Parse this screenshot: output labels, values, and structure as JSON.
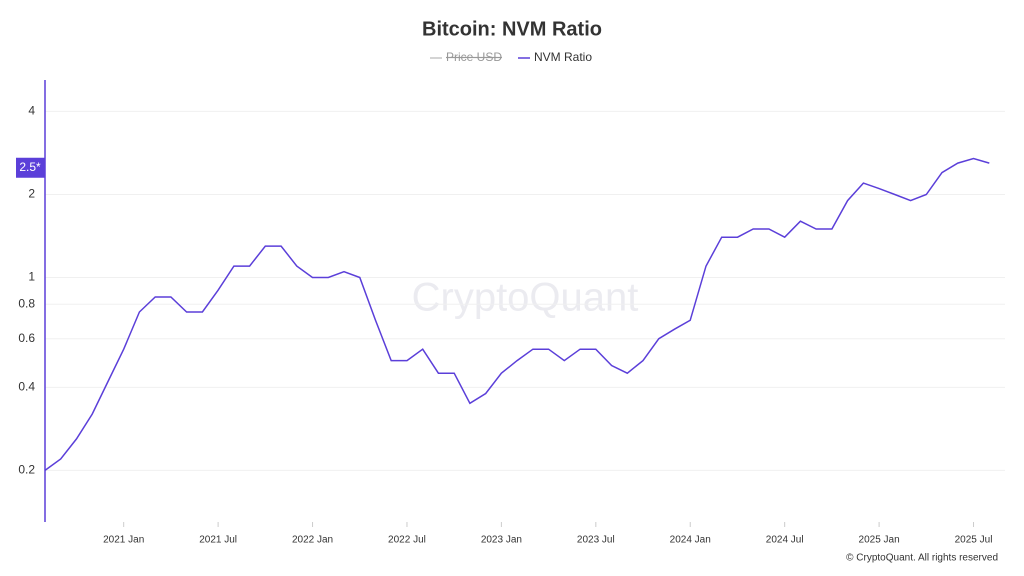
{
  "chart_data": {
    "type": "line",
    "title": "Bitcoin: NVM Ratio",
    "x": [
      "2020-08",
      "2020-09",
      "2020-10",
      "2020-11",
      "2020-12",
      "2021-01",
      "2021-02",
      "2021-03",
      "2021-04",
      "2021-05",
      "2021-06",
      "2021-07",
      "2021-08",
      "2021-09",
      "2021-10",
      "2021-11",
      "2021-12",
      "2022-01",
      "2022-02",
      "2022-03",
      "2022-04",
      "2022-05",
      "2022-06",
      "2022-07",
      "2022-08",
      "2022-09",
      "2022-10",
      "2022-11",
      "2022-12",
      "2023-01",
      "2023-02",
      "2023-03",
      "2023-04",
      "2023-05",
      "2023-06",
      "2023-07",
      "2023-08",
      "2023-09",
      "2023-10",
      "2023-11",
      "2023-12",
      "2024-01",
      "2024-02",
      "2024-03",
      "2024-04",
      "2024-05",
      "2024-06",
      "2024-07",
      "2024-08",
      "2024-09",
      "2024-10",
      "2024-11",
      "2024-12",
      "2025-01",
      "2025-02",
      "2025-03",
      "2025-04",
      "2025-05",
      "2025-06",
      "2025-07",
      "2025-08"
    ],
    "series": [
      {
        "name": "NVM Ratio",
        "color": "#5b3fd9",
        "values": [
          0.2,
          0.22,
          0.26,
          0.32,
          0.42,
          0.55,
          0.75,
          0.85,
          0.85,
          0.75,
          0.75,
          0.9,
          1.1,
          1.1,
          1.3,
          1.3,
          1.1,
          1.0,
          1.0,
          1.05,
          1.0,
          0.7,
          0.5,
          0.5,
          0.55,
          0.45,
          0.45,
          0.35,
          0.38,
          0.45,
          0.5,
          0.55,
          0.55,
          0.5,
          0.55,
          0.55,
          0.48,
          0.45,
          0.5,
          0.6,
          0.65,
          0.7,
          1.1,
          1.4,
          1.4,
          1.5,
          1.5,
          1.4,
          1.6,
          1.5,
          1.5,
          1.9,
          2.2,
          2.1,
          2.0,
          1.9,
          2.0,
          2.4,
          2.6,
          2.7,
          2.6
        ]
      }
    ],
    "hidden_series": [
      {
        "name": "Price USD",
        "color": "#aaaaaa"
      }
    ],
    "xlim": [
      "2020-08",
      "2025-09"
    ],
    "xticks": [
      {
        "value": "2021-01",
        "label": "2021 Jan"
      },
      {
        "value": "2021-07",
        "label": "2021 Jul"
      },
      {
        "value": "2022-01",
        "label": "2022 Jan"
      },
      {
        "value": "2022-07",
        "label": "2022 Jul"
      },
      {
        "value": "2023-01",
        "label": "2023 Jan"
      },
      {
        "value": "2023-07",
        "label": "2023 Jul"
      },
      {
        "value": "2024-01",
        "label": "2024 Jan"
      },
      {
        "value": "2024-07",
        "label": "2024 Jul"
      },
      {
        "value": "2025-01",
        "label": "2025 Jan"
      },
      {
        "value": "2025-07",
        "label": "2025 Jul"
      }
    ],
    "ylim": [
      0.13,
      5.2
    ],
    "yscale": "log",
    "yticks": [
      0.2,
      0.4,
      0.6,
      0.8,
      1,
      2,
      4
    ],
    "last_value_label": {
      "value": 2.5,
      "label": "2.5*"
    },
    "grid": true,
    "watermark": "CryptoQuant",
    "footer": "© CryptoQuant. All rights reserved"
  }
}
